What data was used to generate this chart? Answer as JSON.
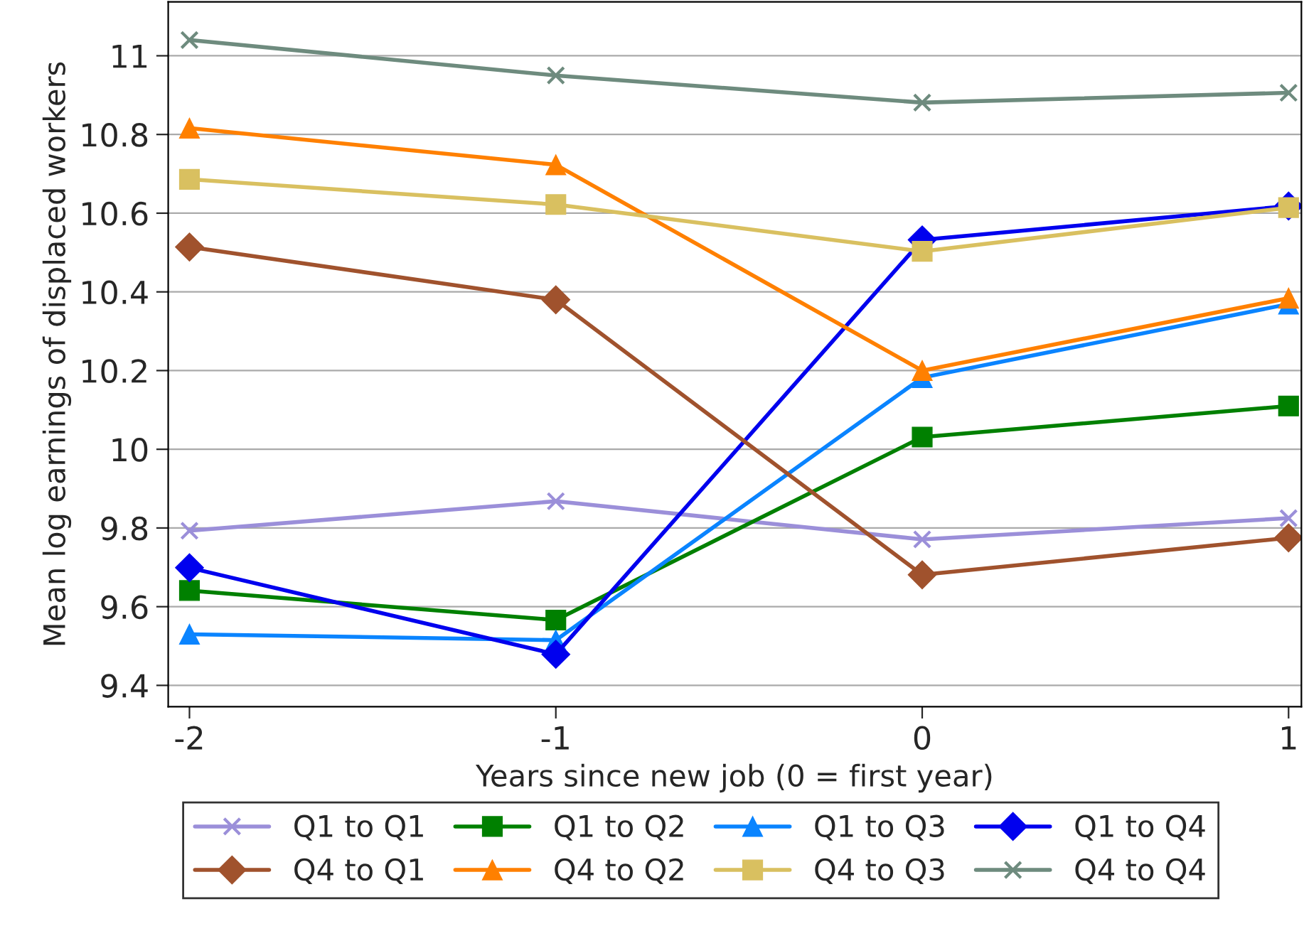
{
  "chart_data": {
    "type": "line",
    "xlabel": "Years since new job (0 = first year)",
    "ylabel": "Mean log earnings of displaced workers",
    "x": [
      -2,
      -1,
      0,
      1
    ],
    "xlim": [
      -2.058,
      1.035
    ],
    "xticks": [
      -2,
      -1,
      0,
      1
    ],
    "ylim": [
      9.346,
      11.137
    ],
    "yticks": [
      9.4,
      9.6,
      9.8,
      {
        "value": 10,
        "label": "10"
      },
      10.2,
      10.4,
      10.6,
      10.8,
      {
        "value": 11,
        "label": "11"
      }
    ],
    "grid": "y",
    "legend": "bottom",
    "series": [
      {
        "name": "Q1 to Q1",
        "color": "#9b8fd9",
        "marker": "cross",
        "values": [
          9.793,
          9.868,
          9.771,
          9.825
        ]
      },
      {
        "name": "Q1 to Q2",
        "color": "#008000",
        "marker": "square",
        "values": [
          9.641,
          9.566,
          10.031,
          10.11
        ]
      },
      {
        "name": "Q1 to Q3",
        "color": "#0a84ff",
        "marker": "triangle",
        "values": [
          9.53,
          9.515,
          10.182,
          10.369
        ]
      },
      {
        "name": "Q1 to Q4",
        "color": "#0000ee",
        "marker": "diamond",
        "values": [
          9.699,
          9.479,
          10.532,
          10.618
        ]
      },
      {
        "name": "Q4 to Q1",
        "color": "#a0522d",
        "marker": "diamond",
        "values": [
          10.514,
          10.38,
          9.681,
          9.775
        ]
      },
      {
        "name": "Q4 to Q2",
        "color": "#ff8000",
        "marker": "triangle",
        "values": [
          10.816,
          10.723,
          10.2,
          10.384
        ]
      },
      {
        "name": "Q4 to Q3",
        "color": "#d9c060",
        "marker": "square",
        "values": [
          10.686,
          10.622,
          10.503,
          10.614
        ]
      },
      {
        "name": "Q4 to Q4",
        "color": "#6e8b7e",
        "marker": "cross",
        "values": [
          11.04,
          10.95,
          10.881,
          10.906
        ]
      }
    ]
  }
}
